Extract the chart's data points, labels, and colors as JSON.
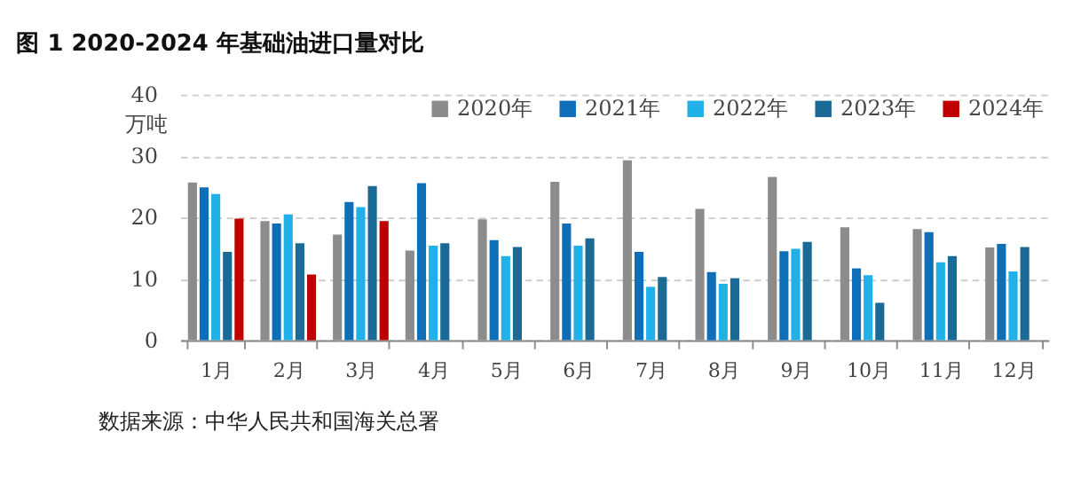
{
  "chart_data": {
    "type": "bar",
    "title": "图 1 2020-2024 年基础油进口量对比",
    "ylabel": "万吨",
    "categories": [
      "1月",
      "2月",
      "3月",
      "4月",
      "5月",
      "6月",
      "7月",
      "8月",
      "9月",
      "10月",
      "11月",
      "12月"
    ],
    "series": [
      {
        "name": "2020年",
        "color": "#8c8c8c",
        "values": [
          25.7,
          19.4,
          17.2,
          14.6,
          19.7,
          25.8,
          29.3,
          21.4,
          26.6,
          18.4,
          18.1,
          15.1
        ]
      },
      {
        "name": "2021年",
        "color": "#0e6eb8",
        "values": [
          24.9,
          19.0,
          22.5,
          25.6,
          16.3,
          19.0,
          14.4,
          11.1,
          14.5,
          11.7,
          17.6,
          15.7
        ]
      },
      {
        "name": "2022年",
        "color": "#1fb1e8",
        "values": [
          23.8,
          20.5,
          21.7,
          15.4,
          13.7,
          15.4,
          8.7,
          9.2,
          14.9,
          10.6,
          12.7,
          11.2
        ]
      },
      {
        "name": "2023年",
        "color": "#1a6a95",
        "values": [
          14.4,
          15.8,
          25.1,
          15.8,
          15.2,
          16.6,
          10.3,
          10.1,
          16.0,
          6.1,
          13.7,
          15.2
        ]
      },
      {
        "name": "2024年",
        "color": "#c00000",
        "values": [
          19.8,
          10.7,
          19.4,
          null,
          null,
          null,
          null,
          null,
          null,
          null,
          null,
          null
        ]
      }
    ],
    "ylim": [
      0,
      40
    ],
    "yticks": [
      0,
      10,
      20,
      30,
      40
    ],
    "grid": "y",
    "legend": "top right",
    "annotations": [
      "数据来源：中华人民共和国海关总署"
    ]
  }
}
